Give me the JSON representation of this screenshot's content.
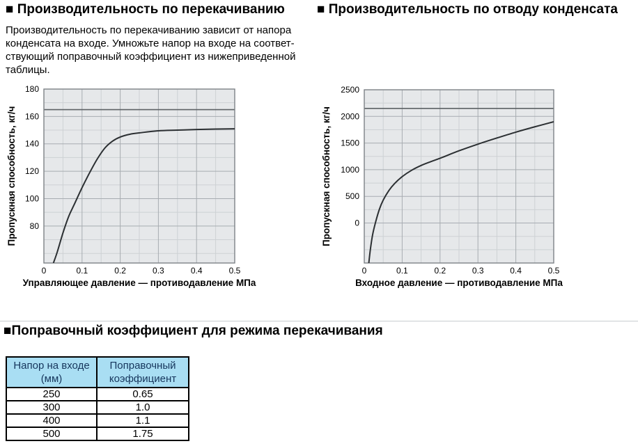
{
  "headings": {
    "pumping": "■ Производительность по перекачиванию",
    "condensate": "■ Производительность по отводу конденсата",
    "correction": "■Поправочный коэффициент для режима перекачивания"
  },
  "paragraph": "Производительность по перекачиванию зависит от напора\nконденсата на входе. Умножьте напор на входе на соответ-\nствующий поправочный коэффициент из нижеприведенной\nтаблицы.",
  "chart_data": [
    {
      "type": "line",
      "name": "pumping-capacity",
      "ylabel": "Пропускная способность, кг/ч",
      "xlabel": "Управляющее давление — противодавление МПа",
      "xlim": [
        0,
        0.5
      ],
      "ylim": [
        53,
        180
      ],
      "xticks": [
        "0",
        "0.1",
        "0.2",
        "0.3",
        "0.4",
        "0.5"
      ],
      "xtick_values": [
        0,
        0.1,
        0.2,
        0.3,
        0.4,
        0.5
      ],
      "yticks": [
        80,
        100,
        120,
        140,
        160,
        180
      ],
      "x_minor_step": 0.05,
      "y_minor_step": 10,
      "reference_line_y": 165,
      "grid": true,
      "legend": "none",
      "series": [
        {
          "name": "Пропускная способность при перекачивании",
          "points": [
            [
              0.025,
              53
            ],
            [
              0.035,
              61
            ],
            [
              0.05,
              75
            ],
            [
              0.065,
              87
            ],
            [
              0.08,
              96
            ],
            [
              0.1,
              108
            ],
            [
              0.12,
              119
            ],
            [
              0.14,
              129
            ],
            [
              0.16,
              137
            ],
            [
              0.18,
              142
            ],
            [
              0.2,
              145
            ],
            [
              0.225,
              147
            ],
            [
              0.25,
              148
            ],
            [
              0.3,
              149.5
            ],
            [
              0.35,
              150
            ],
            [
              0.4,
              150.5
            ],
            [
              0.45,
              150.8
            ],
            [
              0.5,
              151
            ]
          ]
        }
      ]
    },
    {
      "type": "line",
      "name": "condensate-discharge-capacity",
      "ylabel": "Пропускная способность, кг/ч",
      "xlabel": "Входное давление — противодавление МПа",
      "xlim": [
        0,
        0.5
      ],
      "ylim": [
        -750,
        2500
      ],
      "xticks": [
        "0",
        "0.1",
        "0.2",
        "0.3",
        "0.4",
        "0.5"
      ],
      "xtick_values": [
        0,
        0.1,
        0.2,
        0.3,
        0.4,
        0.5
      ],
      "yticks": [
        0,
        500,
        1000,
        1500,
        2000,
        2500
      ],
      "x_minor_step": 0.05,
      "y_minor_step": 250,
      "reference_line_y": 2150,
      "grid": true,
      "legend": "none",
      "series": [
        {
          "name": "Пропускная способность при отводе конденсата",
          "points": [
            [
              0.012,
              -750
            ],
            [
              0.016,
              -500
            ],
            [
              0.022,
              -220
            ],
            [
              0.03,
              20
            ],
            [
              0.04,
              260
            ],
            [
              0.05,
              430
            ],
            [
              0.065,
              610
            ],
            [
              0.08,
              740
            ],
            [
              0.1,
              870
            ],
            [
              0.125,
              990
            ],
            [
              0.15,
              1080
            ],
            [
              0.175,
              1150
            ],
            [
              0.2,
              1215
            ],
            [
              0.25,
              1355
            ],
            [
              0.3,
              1480
            ],
            [
              0.35,
              1595
            ],
            [
              0.4,
              1705
            ],
            [
              0.45,
              1805
            ],
            [
              0.5,
              1900
            ]
          ]
        }
      ]
    }
  ],
  "table": {
    "headers": [
      "Напор на входе\n(мм)",
      "Поправочный\nкоэффициент"
    ],
    "rows": [
      [
        "250",
        "0.65"
      ],
      [
        "300",
        "1.0"
      ],
      [
        "400",
        "1.1"
      ],
      [
        "500",
        "1.75"
      ]
    ]
  },
  "colors": {
    "plot_bg": "#e6e8ea",
    "grid_minor": "#cdd1d4",
    "grid_major": "#a7acb1",
    "plot_border": "#7d8287",
    "reference_line": "#5c6165",
    "curve": "#2b2f32",
    "rule": "#c9cdd0",
    "table_header_bg": "#a9def3",
    "table_header_text": "#16365c",
    "text": "#000000"
  }
}
